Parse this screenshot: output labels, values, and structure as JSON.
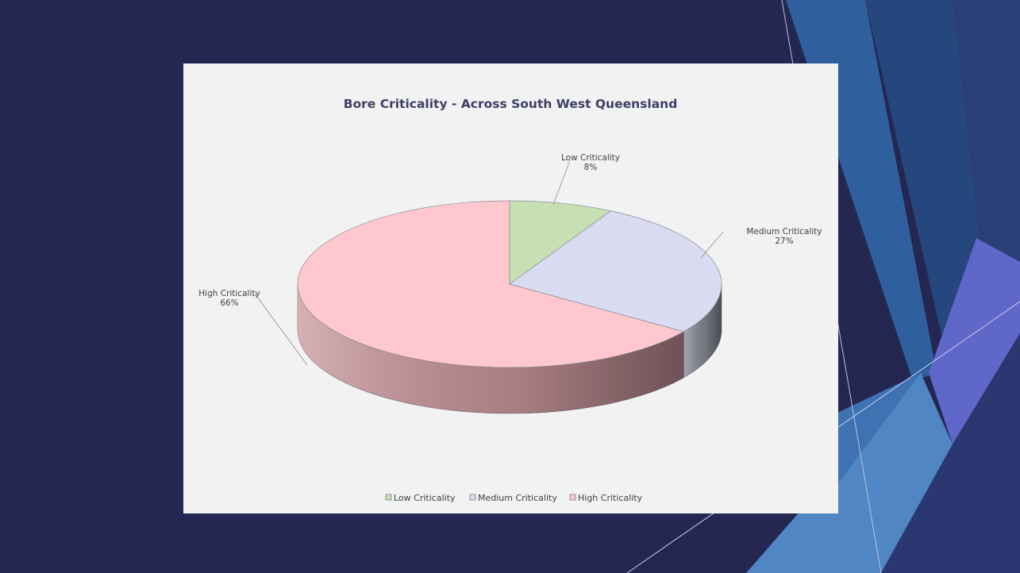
{
  "colors": {
    "background": "#242751",
    "plot_area": "#f2f2f2",
    "low": "#c6e0b4",
    "medium": "#d9dcf1",
    "high": "#ffc7ce",
    "high_side": "#c9969c",
    "medium_side": "#8a8c98"
  },
  "chart_data": {
    "type": "pie",
    "style": "3d",
    "title": "Bore Criticality - Across South West Queensland",
    "categories": [
      "Low Criticality",
      "Medium Criticality",
      "High Criticality"
    ],
    "values": [
      8,
      27,
      66
    ],
    "data_labels": [
      {
        "name": "Low Criticality",
        "value": "8%"
      },
      {
        "name": "Medium Criticality",
        "value": "27%"
      },
      {
        "name": "High Criticality",
        "value": "66%"
      }
    ],
    "legend": {
      "position": "bottom",
      "items": [
        "Low Criticality",
        "Medium Criticality",
        "High Criticality"
      ]
    }
  }
}
